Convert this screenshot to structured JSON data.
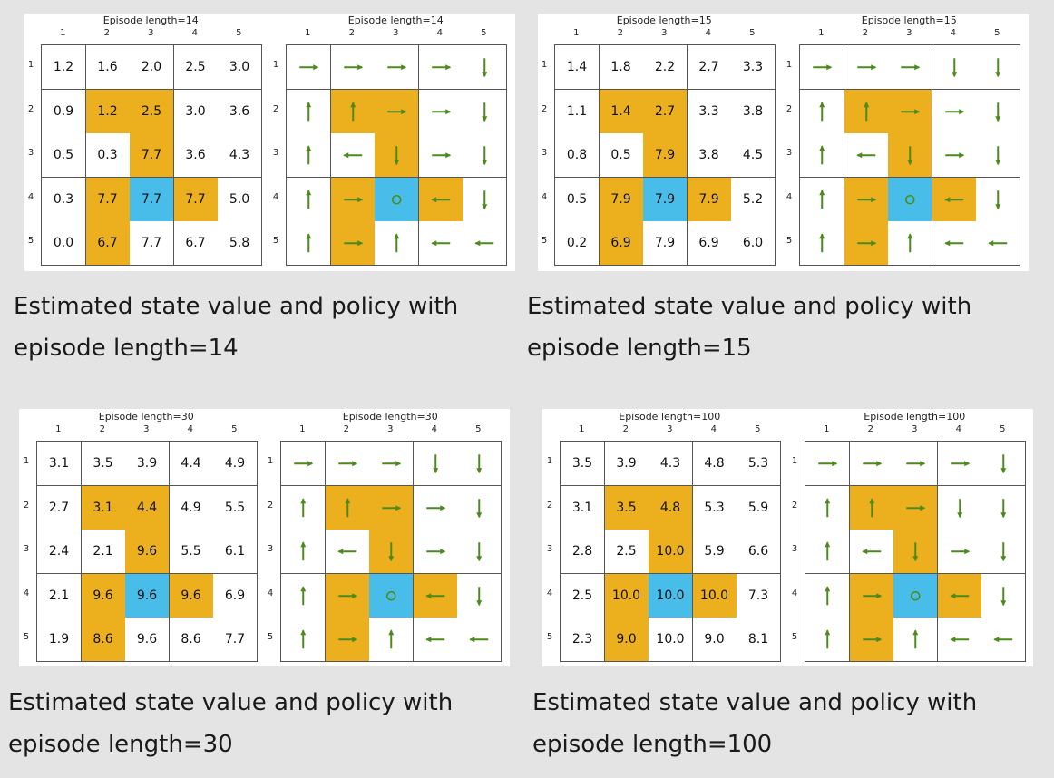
{
  "colors": {
    "forbidden": "#ecb01f",
    "target": "#48bdea",
    "arrow": "#4d8a1c"
  },
  "panels": [
    {
      "value_title": "Episode length=14",
      "policy_title": "Episode length=14",
      "col_labels": [
        "1",
        "2",
        "3",
        "4",
        "5"
      ],
      "row_labels": [
        "1",
        "2",
        "3",
        "4",
        "5"
      ],
      "values": [
        [
          "1.2",
          "1.6",
          "2.0",
          "2.5",
          "3.0"
        ],
        [
          "0.9",
          "1.2",
          "2.5",
          "3.0",
          "3.6"
        ],
        [
          "0.5",
          "0.3",
          "7.7",
          "3.6",
          "4.3"
        ],
        [
          "0.3",
          "7.7",
          "7.7",
          "7.7",
          "5.0"
        ],
        [
          "0.0",
          "6.7",
          "7.7",
          "6.7",
          "5.8"
        ]
      ],
      "policy": [
        [
          "right",
          "right",
          "right",
          "right",
          "down"
        ],
        [
          "up",
          "up",
          "right",
          "right",
          "down"
        ],
        [
          "up",
          "left",
          "down",
          "right",
          "down"
        ],
        [
          "up",
          "right",
          "stay",
          "left",
          "down"
        ],
        [
          "up",
          "right",
          "up",
          "left",
          "left"
        ]
      ],
      "caption_line1": "Estimated state value and policy with",
      "caption_line2": "episode length=14"
    },
    {
      "value_title": "Episode length=15",
      "policy_title": "Episode length=15",
      "col_labels": [
        "1",
        "2",
        "3",
        "4",
        "5"
      ],
      "row_labels": [
        "1",
        "2",
        "3",
        "4",
        "5"
      ],
      "values": [
        [
          "1.4",
          "1.8",
          "2.2",
          "2.7",
          "3.3"
        ],
        [
          "1.1",
          "1.4",
          "2.7",
          "3.3",
          "3.8"
        ],
        [
          "0.8",
          "0.5",
          "7.9",
          "3.8",
          "4.5"
        ],
        [
          "0.5",
          "7.9",
          "7.9",
          "7.9",
          "5.2"
        ],
        [
          "0.2",
          "6.9",
          "7.9",
          "6.9",
          "6.0"
        ]
      ],
      "policy": [
        [
          "right",
          "right",
          "right",
          "down",
          "down"
        ],
        [
          "up",
          "up",
          "right",
          "right",
          "down"
        ],
        [
          "up",
          "left",
          "down",
          "right",
          "down"
        ],
        [
          "up",
          "right",
          "stay",
          "left",
          "down"
        ],
        [
          "up",
          "right",
          "up",
          "left",
          "left"
        ]
      ],
      "caption_line1": "Estimated state value and policy with",
      "caption_line2": "episode length=15"
    },
    {
      "value_title": "Episode length=30",
      "policy_title": "Episode length=30",
      "col_labels": [
        "1",
        "2",
        "3",
        "4",
        "5"
      ],
      "row_labels": [
        "1",
        "2",
        "3",
        "4",
        "5"
      ],
      "values": [
        [
          "3.1",
          "3.5",
          "3.9",
          "4.4",
          "4.9"
        ],
        [
          "2.7",
          "3.1",
          "4.4",
          "4.9",
          "5.5"
        ],
        [
          "2.4",
          "2.1",
          "9.6",
          "5.5",
          "6.1"
        ],
        [
          "2.1",
          "9.6",
          "9.6",
          "9.6",
          "6.9"
        ],
        [
          "1.9",
          "8.6",
          "9.6",
          "8.6",
          "7.7"
        ]
      ],
      "policy": [
        [
          "right",
          "right",
          "right",
          "down",
          "down"
        ],
        [
          "up",
          "up",
          "right",
          "right",
          "down"
        ],
        [
          "up",
          "left",
          "down",
          "right",
          "down"
        ],
        [
          "up",
          "right",
          "stay",
          "left",
          "down"
        ],
        [
          "up",
          "right",
          "up",
          "left",
          "left"
        ]
      ],
      "caption_line1": "Estimated state value and policy with",
      "caption_line2": "episode length=30"
    },
    {
      "value_title": "Episode length=100",
      "policy_title": "Episode length=100",
      "col_labels": [
        "1",
        "2",
        "3",
        "4",
        "5"
      ],
      "row_labels": [
        "1",
        "2",
        "3",
        "4",
        "5"
      ],
      "values": [
        [
          "3.5",
          "3.9",
          "4.3",
          "4.8",
          "5.3"
        ],
        [
          "3.1",
          "3.5",
          "4.8",
          "5.3",
          "5.9"
        ],
        [
          "2.8",
          "2.5",
          "10.0",
          "5.9",
          "6.6"
        ],
        [
          "2.5",
          "10.0",
          "10.0",
          "10.0",
          "7.3"
        ],
        [
          "2.3",
          "9.0",
          "10.0",
          "9.0",
          "8.1"
        ]
      ],
      "policy": [
        [
          "right",
          "right",
          "right",
          "right",
          "down"
        ],
        [
          "up",
          "up",
          "right",
          "down",
          "down"
        ],
        [
          "up",
          "left",
          "down",
          "right",
          "down"
        ],
        [
          "up",
          "right",
          "stay",
          "left",
          "down"
        ],
        [
          "up",
          "right",
          "up",
          "left",
          "left"
        ]
      ],
      "caption_line1": "Estimated state value and policy with",
      "caption_line2": "episode length=100"
    }
  ],
  "cell_types": [
    [
      "n",
      "n",
      "n",
      "n",
      "n"
    ],
    [
      "n",
      "f",
      "f",
      "n",
      "n"
    ],
    [
      "n",
      "n",
      "f",
      "n",
      "n"
    ],
    [
      "n",
      "f",
      "t",
      "f",
      "n"
    ],
    [
      "n",
      "f",
      "n",
      "n",
      "n"
    ]
  ]
}
